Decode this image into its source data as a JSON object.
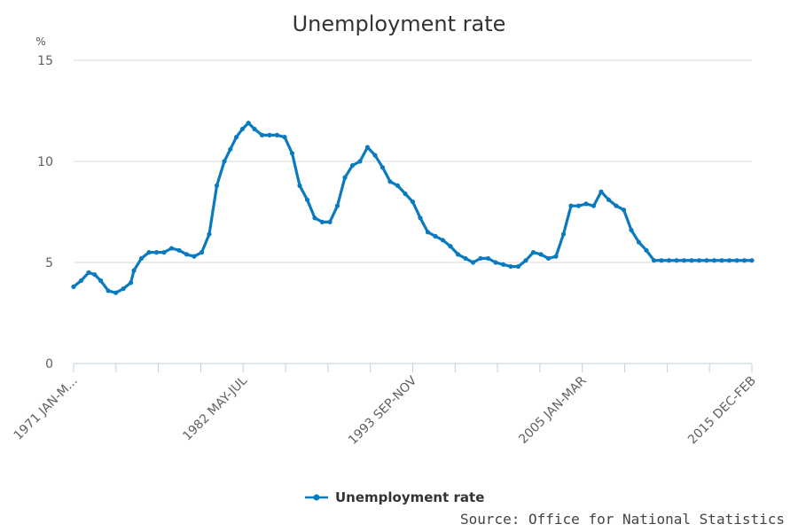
{
  "chart_data": {
    "type": "line",
    "title": "Unemployment rate",
    "y_unit": "%",
    "ylim": [
      0,
      15
    ],
    "yticks": [
      0,
      5,
      10,
      15
    ],
    "x_start": "1971 JAN-MAR",
    "x_end": "2015 DEC-FEB",
    "xtick_labels": [
      "1971 JAN-M...",
      "1982 MAY-JUL",
      "1993 SEP-NOV",
      "2005 JAN-MAR",
      "2015 DEC-FEB"
    ],
    "grid": true,
    "legend_position": "bottom",
    "series": [
      {
        "name": "Unemployment rate",
        "color": "#0a7abf",
        "x": [
          1971.0,
          1971.5,
          1972.0,
          1972.4,
          1972.8,
          1973.3,
          1973.8,
          1974.3,
          1974.8,
          1975.0,
          1975.5,
          1976.0,
          1976.5,
          1977.0,
          1977.5,
          1978.0,
          1978.5,
          1979.0,
          1979.5,
          1980.0,
          1980.5,
          1981.0,
          1981.4,
          1981.8,
          1982.2,
          1982.6,
          1983.0,
          1983.5,
          1984.0,
          1984.5,
          1985.0,
          1985.5,
          1986.0,
          1986.5,
          1987.0,
          1987.5,
          1988.0,
          1988.5,
          1989.0,
          1989.5,
          1990.0,
          1990.5,
          1991.0,
          1991.5,
          1992.0,
          1992.5,
          1993.0,
          1993.5,
          1994.0,
          1994.5,
          1995.0,
          1995.5,
          1996.0,
          1996.5,
          1997.0,
          1997.5,
          1998.0,
          1998.5,
          1999.0,
          1999.5,
          2000.0,
          2000.5,
          2001.0,
          2001.5,
          2002.0,
          2002.5,
          2003.0,
          2003.5,
          2004.0,
          2004.5,
          2005.0,
          2005.5,
          2006.0,
          2006.5,
          2007.0,
          2007.5,
          2008.0,
          2008.5,
          2009.0,
          2009.5,
          2010.0,
          2010.5,
          2011.0,
          2011.5,
          2012.0,
          2012.5,
          2013.0,
          2013.5,
          2014.0,
          2014.5,
          2015.0,
          2015.5,
          2016.0
        ],
        "values": [
          3.8,
          4.1,
          4.5,
          4.4,
          4.1,
          3.6,
          3.5,
          3.7,
          4.0,
          4.6,
          5.2,
          5.5,
          5.5,
          5.5,
          5.7,
          5.6,
          5.4,
          5.3,
          5.5,
          6.4,
          8.8,
          10.0,
          10.6,
          11.2,
          11.6,
          11.9,
          11.6,
          11.3,
          11.3,
          11.3,
          11.2,
          10.4,
          8.8,
          8.1,
          7.2,
          7.0,
          7.0,
          7.8,
          9.2,
          9.8,
          10.0,
          10.7,
          10.3,
          9.7,
          9.0,
          8.8,
          8.4,
          8.0,
          7.2,
          6.5,
          6.3,
          6.1,
          5.8,
          5.4,
          5.2,
          5.0,
          5.2,
          5.2,
          5.0,
          4.9,
          4.8,
          4.8,
          5.1,
          5.5,
          5.4,
          5.2,
          5.3,
          6.4,
          7.8,
          7.8,
          7.9,
          7.8,
          8.5,
          8.1,
          7.8,
          7.6,
          6.6,
          6.0,
          5.6,
          5.1,
          5.1,
          5.1,
          5.1,
          5.1,
          5.1,
          5.1,
          5.1,
          5.1,
          5.1,
          5.1,
          5.1,
          5.1,
          5.1
        ]
      }
    ]
  },
  "legend": {
    "label": "Unemployment rate"
  },
  "source": "Source: Office for National Statistics"
}
